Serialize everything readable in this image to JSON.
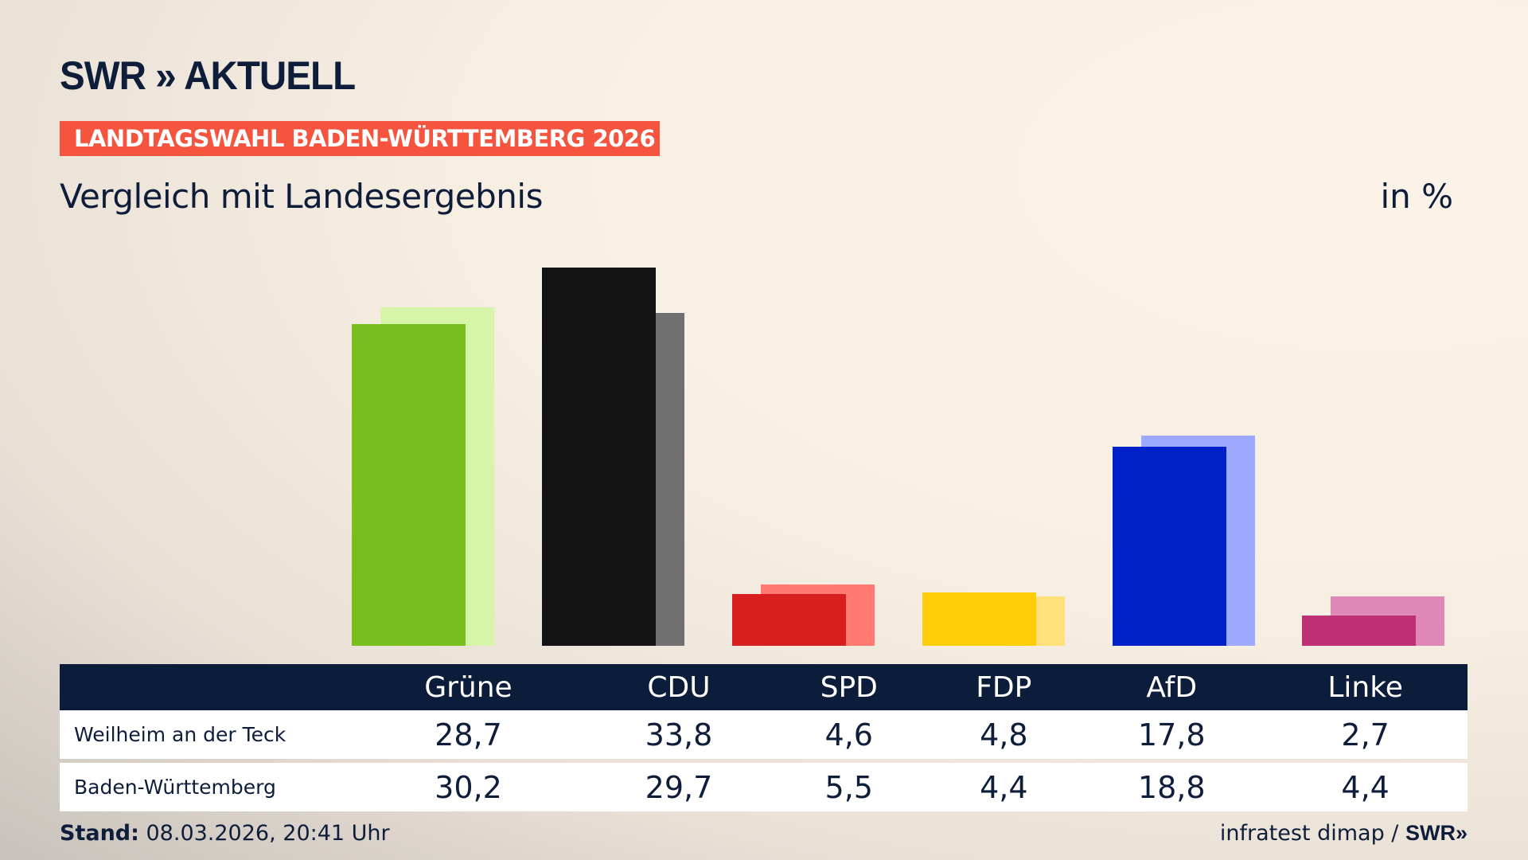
{
  "logo": "SWR » AKTUELL",
  "banner": "LANDTAGSWAHL BADEN-WÜRTTEMBERG 2026",
  "subtitle": "Vergleich mit Landesergebnis",
  "unit": "in %",
  "chart_data": {
    "type": "bar",
    "categories": [
      "Grüne",
      "CDU",
      "SPD",
      "FDP",
      "AfD",
      "Linke"
    ],
    "series": [
      {
        "name": "Weilheim an der Teck",
        "values": [
          28.7,
          33.8,
          4.6,
          4.8,
          17.8,
          2.7
        ],
        "labels": [
          "28,7",
          "33,8",
          "4,6",
          "4,8",
          "17,8",
          "2,7"
        ]
      },
      {
        "name": "Baden-Württemberg",
        "values": [
          30.2,
          29.7,
          5.5,
          4.4,
          18.8,
          4.4
        ],
        "labels": [
          "30,2",
          "29,7",
          "5,5",
          "4,4",
          "18,8",
          "4,4"
        ]
      }
    ],
    "colors": {
      "front": [
        "#78be1e",
        "#131313",
        "#d71f1f",
        "#ffcd0a",
        "#0020c8",
        "#be3075"
      ],
      "back": [
        "#d6f5a8",
        "#707070",
        "#ff7a73",
        "#ffe07a",
        "#9eaaff",
        "#df88b8"
      ]
    }
  },
  "footer": {
    "stand_label": "Stand:",
    "stand_value": " 08.03.2026, 20:41 Uhr",
    "source": "infratest dimap / ",
    "source_logo": "SWR»"
  }
}
